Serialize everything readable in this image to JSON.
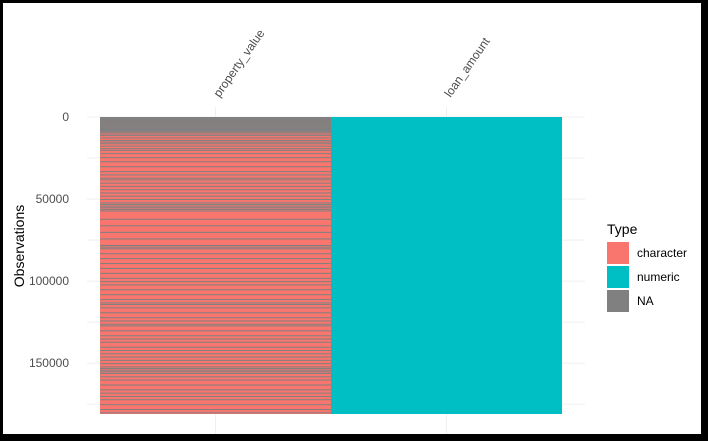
{
  "chart_data": {
    "type": "heatmap",
    "title": "",
    "xlabel": "",
    "ylabel": "Observations",
    "columns": [
      "property_value",
      "loan_amount"
    ],
    "n_observations": 181000,
    "ylim": [
      0,
      181000
    ],
    "yticks": [
      0,
      50000,
      100000,
      150000
    ],
    "ytick_labels": [
      "0",
      "50000",
      "100000",
      "150000"
    ],
    "grid": true,
    "legend": {
      "title": "Type",
      "position": "right",
      "entries": [
        {
          "label": "character",
          "color": "#F8766D"
        },
        {
          "label": "numeric",
          "color": "#00BFC4"
        },
        {
          "label": "NA",
          "color": "#808080"
        }
      ]
    },
    "column_types": [
      {
        "column": "property_value",
        "base_type": "character",
        "na_rows": [
          0,
          500,
          1000,
          1500,
          2000,
          2500,
          3000,
          3500,
          4000,
          4500,
          5000,
          5500,
          6000,
          6500,
          7000,
          7500,
          8000,
          8500,
          9000,
          10000,
          11000,
          12500,
          14000,
          15000,
          16000,
          17500,
          19000,
          20000,
          22000,
          24500,
          27000,
          30000,
          33000,
          35000,
          37000,
          38000,
          40000,
          42000,
          44000,
          46000,
          48000,
          50000,
          52000,
          53000,
          54000,
          55000,
          56000,
          57000,
          62000,
          66000,
          70000,
          74000,
          78000,
          79000,
          80000,
          83000,
          86000,
          89000,
          92000,
          95000,
          98000,
          100000,
          102000,
          105000,
          108000,
          111000,
          113000,
          114000,
          116000,
          119000,
          122000,
          124000,
          126000,
          127000,
          130000,
          133000,
          135000,
          137000,
          140000,
          142000,
          144000,
          146000,
          148000,
          150000,
          152000,
          153000,
          154000,
          155000,
          156000,
          158000,
          160000,
          163000,
          166000,
          168000,
          170000,
          172000,
          175000,
          178000,
          180000
        ],
        "na_row_height": 450
      },
      {
        "column": "loan_amount",
        "base_type": "numeric",
        "na_rows": [],
        "na_row_height": 0
      }
    ]
  }
}
